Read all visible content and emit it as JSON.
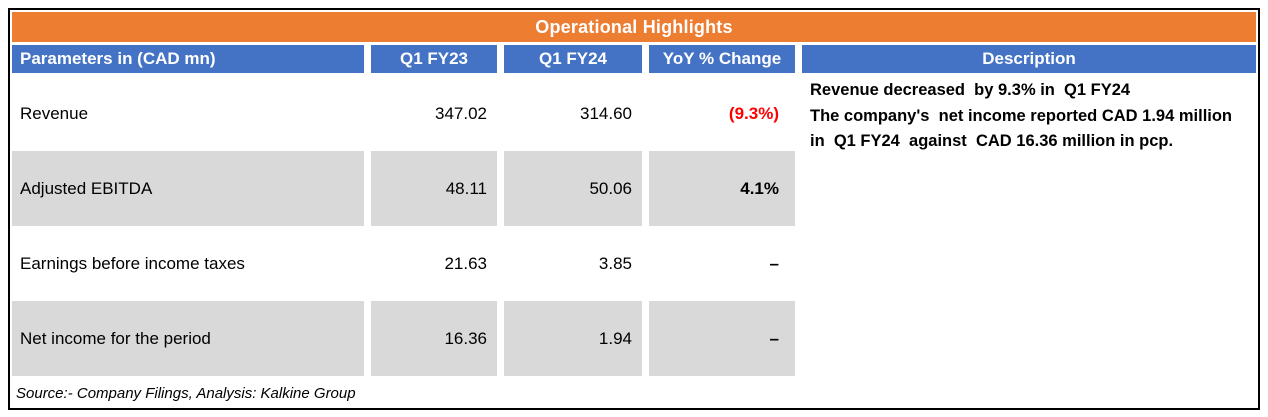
{
  "title": "Operational Highlights",
  "table": {
    "headers": [
      "Parameters in (CAD mn)",
      "Q1 FY23",
      "Q1 FY24",
      "YoY % Change",
      "Description"
    ],
    "rows": [
      {
        "param": "Revenue",
        "q1fy23": "347.02",
        "q1fy24": "314.60",
        "yoy": "(9.3%)"
      },
      {
        "param": "Adjusted EBITDA",
        "q1fy23": "48.11",
        "q1fy24": "50.06",
        "yoy": "4.1%"
      },
      {
        "param": "Earnings before income taxes",
        "q1fy23": "21.63",
        "q1fy24": "3.85",
        "yoy": "–"
      },
      {
        "param": "Net income for the period",
        "q1fy23": "16.36",
        "q1fy24": "1.94",
        "yoy": "–"
      }
    ],
    "description": {
      "line1": "Revenue decreased  by 9.3% in  Q1 FY24",
      "line2": "The company's  net income reported CAD 1.94 million in  Q1 FY24  against  CAD 16.36 million in pcp."
    }
  },
  "source_note": "Source:- Company Filings, Analysis: Kalkine Group",
  "colors": {
    "title_bg": "#ED7D31",
    "header_bg": "#4472C4",
    "row_alt_bg": "#D9D9D9",
    "negative": "#FF0000"
  }
}
